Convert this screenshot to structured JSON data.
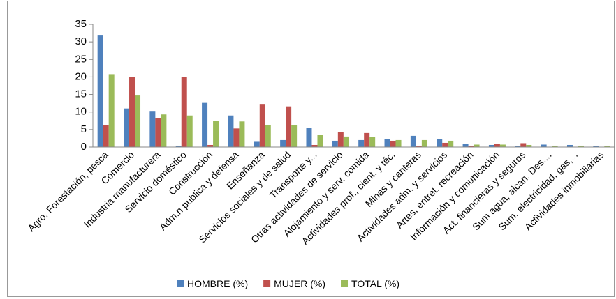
{
  "chart_data": {
    "type": "bar",
    "categories": [
      "Agro. Forestación, pesca",
      "Comercio",
      "Industria manufacturera",
      "Servicio doméstico",
      "Construcción",
      "Adm.n publica y defensa",
      "Enseñanza",
      "Servicios sociales y de salud",
      "Transporte y...",
      "Otras actividades de servicio",
      "Alojamiento y serv. comida",
      "Actividades prof., cient. y téc.",
      "Minas y canteras",
      "Actividades adm. y servicios",
      "Artes, entret. recreación",
      "Información y comunicación",
      "Act. financieras y seguros",
      "Sum agua, alcan. Des....",
      "Sum. electricidad, gas,...",
      "Actividades inmobiliarias"
    ],
    "series": [
      {
        "name": "HOMBRE (%)",
        "color": "#4f81bd",
        "values": [
          32,
          11,
          10.3,
          0.4,
          12.6,
          9,
          1.5,
          2,
          5.5,
          1.8,
          2,
          2.3,
          3.2,
          2.3,
          0.9,
          0.6,
          0.2,
          0.7,
          0.6,
          0.2
        ]
      },
      {
        "name": "MUJER (%)",
        "color": "#c0504d",
        "values": [
          6.3,
          20,
          8.2,
          20,
          0.6,
          5.3,
          12.3,
          11.6,
          0.6,
          4.3,
          4,
          1.8,
          0.4,
          1.2,
          0.4,
          0.9,
          1.1,
          0.1,
          0.1,
          0.1
        ]
      },
      {
        "name": "TOTAL (%)",
        "color": "#9bbb59",
        "values": [
          20.8,
          14.7,
          9.3,
          9,
          7.5,
          7.3,
          6.2,
          6.2,
          3.4,
          3,
          2.9,
          2,
          2,
          1.8,
          0.7,
          0.7,
          0.6,
          0.4,
          0.4,
          0.2
        ]
      }
    ],
    "ylim": [
      0,
      35
    ],
    "yticks": [
      0,
      5,
      10,
      15,
      20,
      25,
      30,
      35
    ],
    "grid": false,
    "legend": "bottom"
  }
}
